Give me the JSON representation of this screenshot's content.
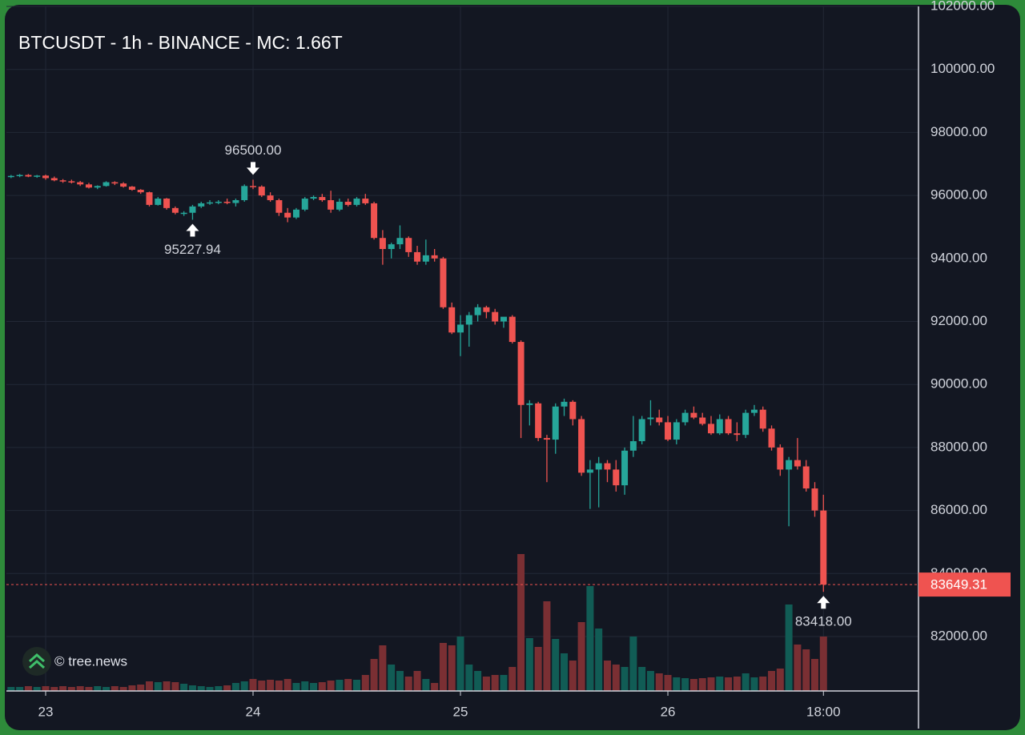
{
  "chart_data": {
    "type": "candlestick",
    "title": "BTCUSDT - 1h - BINANCE - MC: 1.66T",
    "watermark": "© tree.news",
    "x": [
      -4,
      -3,
      -2,
      -1,
      0,
      1,
      2,
      3,
      4,
      5,
      6,
      7,
      8,
      9,
      10,
      11,
      12,
      13,
      14,
      15,
      16,
      17,
      18,
      19,
      20,
      21,
      22,
      23,
      24,
      25,
      26,
      27,
      28,
      29,
      30,
      31,
      32,
      33,
      34,
      35,
      36,
      37,
      38,
      39,
      40,
      41,
      42,
      43,
      44,
      45,
      46,
      47,
      48,
      49,
      50,
      51,
      52,
      53,
      54,
      55,
      56,
      57,
      58,
      59,
      60,
      61,
      62,
      63,
      64,
      65,
      66,
      67,
      68,
      69,
      70,
      71,
      72,
      73,
      74,
      75,
      76,
      77,
      78,
      79,
      80,
      81,
      82,
      83,
      84,
      85,
      86,
      87,
      88,
      89,
      90
    ],
    "open": [
      96600,
      96620,
      96650,
      96600,
      96630,
      96550,
      96480,
      96450,
      96420,
      96350,
      96250,
      96300,
      96420,
      96380,
      96280,
      96180,
      96100,
      95700,
      95900,
      95600,
      95450,
      95450,
      95650,
      95750,
      95780,
      95800,
      95760,
      95850,
      96300,
      96280,
      96000,
      95850,
      95450,
      95300,
      95550,
      95900,
      95950,
      95850,
      95550,
      95800,
      95700,
      95900,
      95750,
      94650,
      94300,
      94450,
      94650,
      94200,
      93900,
      94100,
      94000,
      92450,
      91650,
      91900,
      92200,
      92450,
      92300,
      92000,
      92150,
      91350,
      89350,
      89400,
      88300,
      88250,
      89300,
      89450,
      88900,
      87200,
      87300,
      87500,
      87300,
      86800,
      87900,
      88200,
      88900,
      88950,
      88800,
      88250,
      88800,
      89100,
      88950,
      88750,
      88450,
      88900,
      88450,
      88400,
      89100,
      89200,
      88600,
      88000,
      87300,
      87600,
      87400,
      86700,
      86000
    ],
    "high": [
      96650,
      96680,
      96680,
      96650,
      96660,
      96600,
      96520,
      96500,
      96460,
      96400,
      96320,
      96450,
      96450,
      96420,
      96300,
      96200,
      96120,
      95950,
      95920,
      95650,
      95500,
      95700,
      95800,
      95850,
      95850,
      95900,
      95900,
      96350,
      96500,
      96320,
      96100,
      95900,
      95600,
      95600,
      95950,
      96000,
      96050,
      96150,
      95900,
      95900,
      95950,
      96050,
      95800,
      94900,
      94500,
      95050,
      94700,
      94400,
      94600,
      94300,
      94050,
      92600,
      92200,
      92300,
      92550,
      92500,
      92400,
      92100,
      92200,
      91400,
      89500,
      89450,
      88400,
      89400,
      89550,
      89500,
      89000,
      87600,
      87700,
      87600,
      87600,
      88000,
      89000,
      89000,
      89500,
      89200,
      89000,
      88900,
      89200,
      89300,
      89100,
      89000,
      89050,
      89000,
      88800,
      89200,
      89350,
      89300,
      88700,
      88100,
      87700,
      88300,
      87600,
      86900,
      86500
    ],
    "low": [
      96550,
      96580,
      96580,
      96560,
      96500,
      96450,
      96400,
      96380,
      96300,
      96220,
      96200,
      96280,
      96330,
      96250,
      96150,
      96050,
      95650,
      95680,
      95550,
      95400,
      95350,
      95227.94,
      95600,
      95700,
      95720,
      95720,
      95650,
      95800,
      96200,
      95950,
      95800,
      95350,
      95150,
      95250,
      95500,
      95850,
      95800,
      95450,
      95500,
      95650,
      95650,
      95700,
      94600,
      93800,
      94000,
      94300,
      94050,
      93800,
      93800,
      93900,
      92400,
      91600,
      90900,
      91200,
      92000,
      92100,
      91900,
      91800,
      91300,
      88300,
      88700,
      88200,
      86900,
      87800,
      89000,
      88700,
      87100,
      86050,
      86100,
      86900,
      86600,
      86500,
      87700,
      88100,
      88700,
      88700,
      88200,
      88100,
      88700,
      88900,
      88700,
      88400,
      88400,
      88400,
      88200,
      88300,
      89000,
      88500,
      87900,
      87100,
      85500,
      87300,
      86600,
      85800,
      83418
    ],
    "close": [
      96620,
      96650,
      96600,
      96630,
      96550,
      96480,
      96450,
      96420,
      96350,
      96250,
      96300,
      96420,
      96380,
      96280,
      96180,
      96100,
      95700,
      95900,
      95600,
      95450,
      95450,
      95650,
      95750,
      95780,
      95800,
      95760,
      95850,
      96300,
      96280,
      96000,
      95850,
      95450,
      95300,
      95550,
      95900,
      95950,
      95850,
      95550,
      95800,
      95700,
      95900,
      95750,
      94650,
      94300,
      94450,
      94650,
      94200,
      93900,
      94100,
      94000,
      92450,
      91650,
      91900,
      92200,
      92450,
      92300,
      92000,
      92150,
      91350,
      89350,
      89400,
      88300,
      88250,
      89300,
      89450,
      88900,
      87200,
      87300,
      87500,
      87300,
      86800,
      87900,
      88200,
      88900,
      88950,
      88800,
      88250,
      88800,
      89100,
      88950,
      88750,
      88450,
      88900,
      88450,
      88400,
      89100,
      89200,
      88600,
      88000,
      87300,
      87600,
      87400,
      86700,
      86000,
      83649.31
    ],
    "volume": [
      5,
      5,
      6,
      5,
      6,
      5,
      6,
      5,
      6,
      5,
      6,
      5,
      6,
      5,
      7,
      8,
      12,
      11,
      12,
      11,
      9,
      7,
      6,
      5,
      6,
      7,
      10,
      12,
      15,
      13,
      14,
      13,
      15,
      10,
      12,
      10,
      11,
      13,
      14,
      15,
      14,
      20,
      40,
      57,
      33,
      25,
      18,
      25,
      15,
      10,
      60,
      57,
      68,
      33,
      25,
      18,
      20,
      20,
      30,
      171,
      66,
      55,
      112,
      65,
      47,
      38,
      86,
      131,
      78,
      38,
      33,
      30,
      68,
      30,
      25,
      22,
      20,
      17,
      16,
      15,
      16,
      17,
      18,
      17,
      18,
      22,
      17,
      18,
      25,
      28,
      108,
      58,
      52,
      40,
      68
    ],
    "up_color": "#26a69a",
    "down_color": "#ef5350",
    "up_volume_color": "#115c55",
    "down_volume_color": "#7a2f33",
    "xlim": [
      -4.54,
      101
    ],
    "xticks": [
      {
        "value": 0,
        "label": "23"
      },
      {
        "value": 24,
        "label": "24"
      },
      {
        "value": 48,
        "label": "25"
      },
      {
        "value": 72,
        "label": "26"
      },
      {
        "value": 90,
        "label": "18:00"
      }
    ],
    "ylim": [
      80272,
      102000
    ],
    "yticks": [
      {
        "value": 82000,
        "label": "82000.00"
      },
      {
        "value": 84000,
        "label": "84000.00"
      },
      {
        "value": 86000,
        "label": "86000.00"
      },
      {
        "value": 88000,
        "label": "88000.00"
      },
      {
        "value": 90000,
        "label": "90000.00"
      },
      {
        "value": 92000,
        "label": "92000.00"
      },
      {
        "value": 94000,
        "label": "94000.00"
      },
      {
        "value": 96000,
        "label": "96000.00"
      },
      {
        "value": 98000,
        "label": "98000.00"
      },
      {
        "value": 100000,
        "label": "100000.00"
      },
      {
        "value": 102000,
        "label": "102000.00"
      }
    ],
    "grid": true,
    "annotations": [
      {
        "x": 24,
        "value": 96500,
        "label": "96500.00"
      },
      {
        "x": 17,
        "value": 95227.94,
        "label": "95227.94"
      },
      {
        "x": 90,
        "value": 83418,
        "label": "83418.00"
      }
    ],
    "last_price": {
      "value": 83649.31,
      "label": "83649.31"
    }
  }
}
